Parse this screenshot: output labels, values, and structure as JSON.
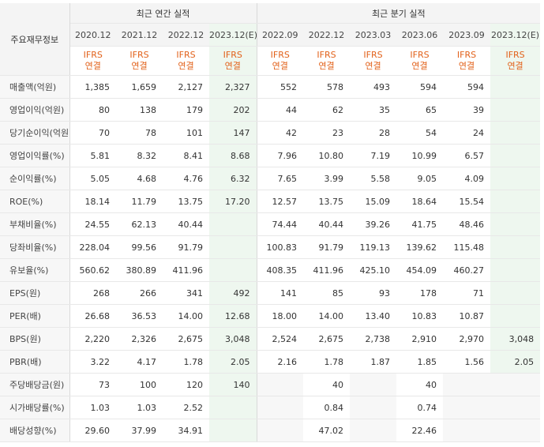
{
  "header": {
    "corner_label": "주요재무정보",
    "annual_group": "최근 연간 실적",
    "quarter_group": "최근 분기 실적",
    "periods": [
      "2020.12",
      "2021.12",
      "2022.12",
      "2023.12(E)",
      "2022.09",
      "2022.12",
      "2023.03",
      "2023.06",
      "2023.09",
      "2023.12(E)"
    ],
    "ifrs_line1": "IFRS",
    "ifrs_line2": "연결"
  },
  "rows": [
    {
      "label": "매출액(억원)",
      "values": [
        "1,385",
        "1,659",
        "2,127",
        "2,327",
        "552",
        "578",
        "493",
        "594",
        "594",
        ""
      ]
    },
    {
      "label": "영업이익(억원)",
      "values": [
        "80",
        "138",
        "179",
        "202",
        "44",
        "62",
        "35",
        "65",
        "39",
        ""
      ]
    },
    {
      "label": "당기순이익(억원)",
      "values": [
        "70",
        "78",
        "101",
        "147",
        "42",
        "23",
        "28",
        "54",
        "24",
        ""
      ]
    },
    {
      "label": "영업이익률(%)",
      "values": [
        "5.81",
        "8.32",
        "8.41",
        "8.68",
        "7.96",
        "10.80",
        "7.19",
        "10.99",
        "6.57",
        ""
      ]
    },
    {
      "label": "순이익률(%)",
      "values": [
        "5.05",
        "4.68",
        "4.76",
        "6.32",
        "7.65",
        "3.99",
        "5.58",
        "9.05",
        "4.09",
        ""
      ]
    },
    {
      "label": "ROE(%)",
      "values": [
        "18.14",
        "11.79",
        "13.75",
        "17.20",
        "12.57",
        "13.75",
        "15.09",
        "18.64",
        "15.54",
        ""
      ]
    },
    {
      "label": "부채비율(%)",
      "values": [
        "24.55",
        "62.13",
        "40.44",
        "",
        "74.44",
        "40.44",
        "39.26",
        "41.75",
        "48.46",
        ""
      ]
    },
    {
      "label": "당좌비율(%)",
      "values": [
        "228.04",
        "99.56",
        "91.79",
        "",
        "100.83",
        "91.79",
        "119.13",
        "139.62",
        "115.48",
        ""
      ]
    },
    {
      "label": "유보율(%)",
      "values": [
        "560.62",
        "380.89",
        "411.96",
        "",
        "408.35",
        "411.96",
        "425.10",
        "454.09",
        "460.27",
        ""
      ]
    },
    {
      "label": "EPS(원)",
      "values": [
        "268",
        "266",
        "341",
        "492",
        "141",
        "85",
        "93",
        "178",
        "71",
        ""
      ]
    },
    {
      "label": "PER(배)",
      "values": [
        "26.68",
        "36.53",
        "14.00",
        "12.68",
        "18.00",
        "14.00",
        "13.40",
        "10.83",
        "10.87",
        ""
      ]
    },
    {
      "label": "BPS(원)",
      "values": [
        "2,220",
        "2,326",
        "2,675",
        "3,048",
        "2,524",
        "2,675",
        "2,738",
        "2,910",
        "2,970",
        "3,048"
      ]
    },
    {
      "label": "PBR(배)",
      "values": [
        "3.22",
        "4.17",
        "1.78",
        "2.05",
        "2.16",
        "1.78",
        "1.87",
        "1.85",
        "1.56",
        "2.05"
      ]
    },
    {
      "label": "주당배당금(원)",
      "values": [
        "73",
        "100",
        "120",
        "140",
        "",
        "40",
        "",
        "40",
        "",
        ""
      ]
    },
    {
      "label": "시가배당률(%)",
      "values": [
        "1.03",
        "1.03",
        "2.52",
        "",
        "",
        "0.84",
        "",
        "0.74",
        "",
        ""
      ]
    },
    {
      "label": "배당성향(%)",
      "values": [
        "29.60",
        "37.99",
        "34.91",
        "",
        "",
        "47.02",
        "",
        "22.46",
        "",
        ""
      ]
    }
  ]
}
